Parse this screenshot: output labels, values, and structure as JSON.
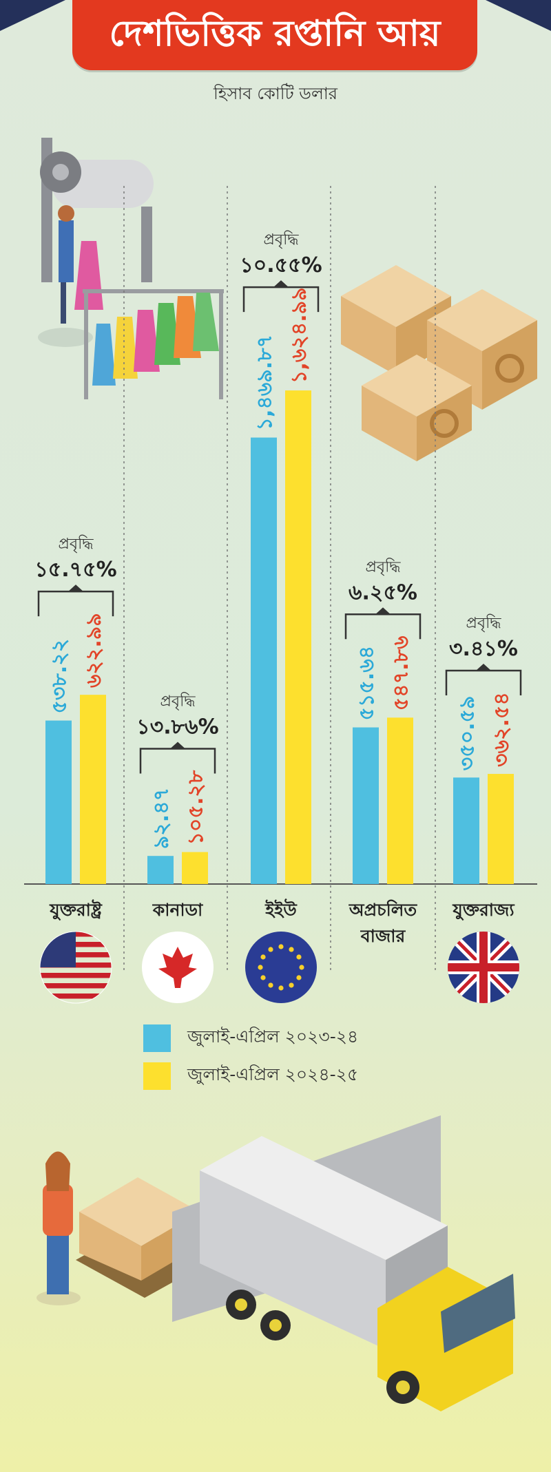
{
  "header": {
    "title": "দেশভিত্তিক রপ্তানি আয়",
    "subtitle": "হিসাব কোটি ডলার"
  },
  "colors": {
    "title_bg": "#e3391f",
    "series_2023": "#4fbfe0",
    "series_2024": "#fde02e",
    "label_2023": "#2ba9d8",
    "label_2024": "#e24428"
  },
  "legend": [
    {
      "label": "জুলাই-এপ্রিল ২০২৩-২৪",
      "color": "#4fbfe0"
    },
    {
      "label": "জুলাই-এপ্রিল ২০২৪-২৫",
      "color": "#fde02e"
    }
  ],
  "chart_data": {
    "type": "bar",
    "categories": [
      "যুক্তরাষ্ট্র",
      "কানাডা",
      "ইইউ",
      "অপ্রচলিত বাজার",
      "যুক্তরাজ্য"
    ],
    "series": [
      {
        "name": "জুলাই-এপ্রিল ২০২৩-২৪",
        "values": [
          538.22,
          92.47,
          1469.87,
          515.64,
          350.59
        ],
        "labels": [
          "৫৩৮.২২",
          "৯২.৪৭",
          "১,৪৬৯.৮৭",
          "৫১৫.৬৪",
          "৩৫০.৫৯"
        ]
      },
      {
        "name": "জুলাই-এপ্রিল ২০২৪-২৫",
        "values": [
          622.99,
          105.28,
          1624.99,
          547.86,
          362.54
        ],
        "labels": [
          "৬২২.৯৯",
          "১০৫.২৮",
          "১,৬২৪.৯৯",
          "৫৪৭.৮৬",
          "৩৬২.৫৪"
        ]
      }
    ],
    "growth_label": "প্রবৃদ্ধি",
    "growth": [
      "১৫.৭৫%",
      "১৩.৮৬%",
      "১০.৫৫%",
      "৬.২৫%",
      "৩.৪১%"
    ],
    "ylim": [
      0,
      1700
    ],
    "grid": false
  },
  "flags": [
    "us-flag",
    "canada-flag",
    "eu-flag",
    "eu-flag-placeholder",
    "uk-flag"
  ]
}
